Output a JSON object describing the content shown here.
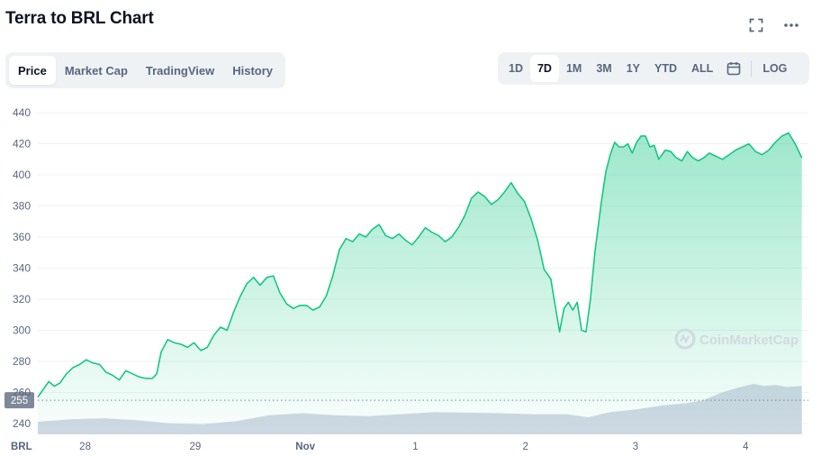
{
  "header": {
    "title": "Terra to BRL Chart"
  },
  "tabs": [
    {
      "label": "Price",
      "active": true
    },
    {
      "label": "Market Cap",
      "active": false
    },
    {
      "label": "TradingView",
      "active": false
    },
    {
      "label": "History",
      "active": false
    }
  ],
  "ranges": [
    {
      "label": "1D",
      "active": false
    },
    {
      "label": "7D",
      "active": true
    },
    {
      "label": "1M",
      "active": false
    },
    {
      "label": "3M",
      "active": false
    },
    {
      "label": "1Y",
      "active": false
    },
    {
      "label": "YTD",
      "active": false
    },
    {
      "label": "ALL",
      "active": false
    }
  ],
  "log_label": "LOG",
  "icons": {
    "expand": "fullscreen-icon",
    "more": "more-options-icon",
    "calendar": "calendar-icon",
    "watermark": "coinmarketcap-logo-icon"
  },
  "watermark": "CoinMarketCap",
  "chart_data": {
    "type": "area",
    "currency_label": "BRL",
    "y_ticks": [
      240,
      260,
      280,
      300,
      320,
      340,
      360,
      380,
      400,
      420,
      440
    ],
    "ylim": [
      233,
      447
    ],
    "xlim": [
      0,
      7
    ],
    "x_ticks": [
      {
        "label": "28",
        "value": 0.43,
        "bold": false
      },
      {
        "label": "29",
        "value": 1.43,
        "bold": false
      },
      {
        "label": "Nov",
        "value": 2.43,
        "bold": true
      },
      {
        "label": "1",
        "value": 3.43,
        "bold": false
      },
      {
        "label": "2",
        "value": 4.43,
        "bold": false
      },
      {
        "label": "3",
        "value": 5.43,
        "bold": false
      },
      {
        "label": "4",
        "value": 6.43,
        "bold": false
      }
    ],
    "reference_line": {
      "value": 255,
      "label": "255"
    },
    "price_series": {
      "name": "",
      "color": "#16c784",
      "fill_top": "#16c784",
      "points": [
        [
          0.0,
          257
        ],
        [
          0.05,
          262
        ],
        [
          0.1,
          267
        ],
        [
          0.15,
          264
        ],
        [
          0.2,
          266
        ],
        [
          0.26,
          272
        ],
        [
          0.32,
          276
        ],
        [
          0.38,
          278
        ],
        [
          0.44,
          281
        ],
        [
          0.5,
          279
        ],
        [
          0.56,
          278
        ],
        [
          0.62,
          273
        ],
        [
          0.68,
          271
        ],
        [
          0.74,
          268
        ],
        [
          0.8,
          274
        ],
        [
          0.86,
          272
        ],
        [
          0.92,
          270
        ],
        [
          0.98,
          269
        ],
        [
          1.04,
          269
        ],
        [
          1.08,
          272
        ],
        [
          1.12,
          286
        ],
        [
          1.18,
          294
        ],
        [
          1.24,
          292
        ],
        [
          1.3,
          291
        ],
        [
          1.36,
          289
        ],
        [
          1.42,
          292
        ],
        [
          1.48,
          287
        ],
        [
          1.54,
          289
        ],
        [
          1.6,
          297
        ],
        [
          1.66,
          302
        ],
        [
          1.72,
          300
        ],
        [
          1.78,
          312
        ],
        [
          1.84,
          322
        ],
        [
          1.9,
          330
        ],
        [
          1.96,
          334
        ],
        [
          2.02,
          329
        ],
        [
          2.08,
          334
        ],
        [
          2.14,
          335
        ],
        [
          2.2,
          324
        ],
        [
          2.26,
          317
        ],
        [
          2.32,
          314
        ],
        [
          2.38,
          316
        ],
        [
          2.44,
          316
        ],
        [
          2.5,
          313
        ],
        [
          2.56,
          315
        ],
        [
          2.62,
          322
        ],
        [
          2.68,
          335
        ],
        [
          2.74,
          352
        ],
        [
          2.8,
          359
        ],
        [
          2.86,
          357
        ],
        [
          2.92,
          362
        ],
        [
          2.98,
          360
        ],
        [
          3.04,
          365
        ],
        [
          3.1,
          368
        ],
        [
          3.16,
          361
        ],
        [
          3.22,
          359
        ],
        [
          3.28,
          362
        ],
        [
          3.34,
          358
        ],
        [
          3.4,
          355
        ],
        [
          3.46,
          360
        ],
        [
          3.52,
          366
        ],
        [
          3.58,
          363
        ],
        [
          3.64,
          361
        ],
        [
          3.7,
          357
        ],
        [
          3.76,
          360
        ],
        [
          3.82,
          366
        ],
        [
          3.88,
          374
        ],
        [
          3.94,
          385
        ],
        [
          4.0,
          389
        ],
        [
          4.06,
          386
        ],
        [
          4.12,
          381
        ],
        [
          4.18,
          384
        ],
        [
          4.24,
          389
        ],
        [
          4.3,
          395
        ],
        [
          4.36,
          388
        ],
        [
          4.42,
          383
        ],
        [
          4.48,
          372
        ],
        [
          4.54,
          358
        ],
        [
          4.6,
          339
        ],
        [
          4.66,
          333
        ],
        [
          4.7,
          316
        ],
        [
          4.74,
          299
        ],
        [
          4.78,
          314
        ],
        [
          4.82,
          318
        ],
        [
          4.86,
          313
        ],
        [
          4.9,
          318
        ],
        [
          4.94,
          300
        ],
        [
          4.98,
          299
        ],
        [
          5.02,
          320
        ],
        [
          5.06,
          350
        ],
        [
          5.12,
          383
        ],
        [
          5.16,
          402
        ],
        [
          5.2,
          413
        ],
        [
          5.24,
          421
        ],
        [
          5.28,
          418
        ],
        [
          5.32,
          418
        ],
        [
          5.36,
          420
        ],
        [
          5.4,
          414
        ],
        [
          5.44,
          421
        ],
        [
          5.48,
          425
        ],
        [
          5.52,
          425
        ],
        [
          5.56,
          418
        ],
        [
          5.6,
          419
        ],
        [
          5.64,
          410
        ],
        [
          5.67,
          413
        ],
        [
          5.7,
          416
        ],
        [
          5.75,
          415
        ],
        [
          5.8,
          411
        ],
        [
          5.85,
          409
        ],
        [
          5.9,
          415
        ],
        [
          5.95,
          411
        ],
        [
          6.0,
          409
        ],
        [
          6.05,
          411
        ],
        [
          6.1,
          414
        ],
        [
          6.16,
          412
        ],
        [
          6.22,
          410
        ],
        [
          6.28,
          413
        ],
        [
          6.34,
          416
        ],
        [
          6.4,
          418
        ],
        [
          6.46,
          420
        ],
        [
          6.52,
          415
        ],
        [
          6.58,
          413
        ],
        [
          6.64,
          416
        ],
        [
          6.7,
          421
        ],
        [
          6.76,
          425
        ],
        [
          6.82,
          427
        ],
        [
          6.88,
          420
        ],
        [
          6.94,
          411
        ]
      ]
    },
    "volume_series": {
      "name": "",
      "color": "#cfd6e4",
      "note": "relative volume level 0-1",
      "points": [
        [
          0.0,
          0.25
        ],
        [
          0.3,
          0.3
        ],
        [
          0.6,
          0.32
        ],
        [
          0.9,
          0.28
        ],
        [
          1.2,
          0.22
        ],
        [
          1.5,
          0.2
        ],
        [
          1.8,
          0.26
        ],
        [
          2.1,
          0.38
        ],
        [
          2.4,
          0.42
        ],
        [
          2.7,
          0.38
        ],
        [
          3.0,
          0.36
        ],
        [
          3.3,
          0.4
        ],
        [
          3.6,
          0.44
        ],
        [
          3.9,
          0.43
        ],
        [
          4.2,
          0.42
        ],
        [
          4.5,
          0.4
        ],
        [
          4.8,
          0.4
        ],
        [
          5.0,
          0.34
        ],
        [
          5.2,
          0.44
        ],
        [
          5.45,
          0.5
        ],
        [
          5.7,
          0.58
        ],
        [
          5.9,
          0.62
        ],
        [
          6.05,
          0.68
        ],
        [
          6.2,
          0.82
        ],
        [
          6.35,
          0.92
        ],
        [
          6.5,
          1.0
        ],
        [
          6.6,
          0.96
        ],
        [
          6.7,
          0.98
        ],
        [
          6.8,
          0.94
        ],
        [
          6.94,
          0.96
        ]
      ]
    }
  }
}
